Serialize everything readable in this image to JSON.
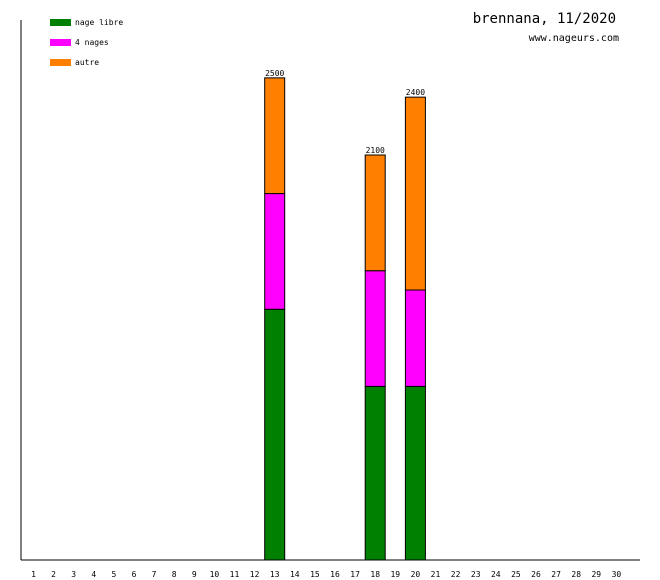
{
  "chart_data": {
    "type": "bar",
    "stacked": true,
    "title": "brennana, 11/2020",
    "subtitle": "www.nageurs.com",
    "xlabel": "",
    "ylabel": "",
    "categories": [
      "1",
      "2",
      "3",
      "4",
      "5",
      "6",
      "7",
      "8",
      "9",
      "10",
      "11",
      "12",
      "13",
      "14",
      "15",
      "16",
      "17",
      "18",
      "19",
      "20",
      "21",
      "22",
      "23",
      "24",
      "25",
      "26",
      "27",
      "28",
      "29",
      "30"
    ],
    "series": [
      {
        "name": "nage libre",
        "color": "#008000",
        "values": [
          0,
          0,
          0,
          0,
          0,
          0,
          0,
          0,
          0,
          0,
          0,
          0,
          1300,
          0,
          0,
          0,
          0,
          900,
          0,
          900,
          0,
          0,
          0,
          0,
          0,
          0,
          0,
          0,
          0,
          0
        ]
      },
      {
        "name": "4 nages",
        "color": "#ff00ff",
        "values": [
          0,
          0,
          0,
          0,
          0,
          0,
          0,
          0,
          0,
          0,
          0,
          0,
          600,
          0,
          0,
          0,
          0,
          600,
          0,
          500,
          0,
          0,
          0,
          0,
          0,
          0,
          0,
          0,
          0,
          0
        ]
      },
      {
        "name": "autre",
        "color": "#ff8000",
        "values": [
          0,
          0,
          0,
          0,
          0,
          0,
          0,
          0,
          0,
          0,
          0,
          0,
          600,
          0,
          0,
          0,
          0,
          600,
          0,
          1000,
          0,
          0,
          0,
          0,
          0,
          0,
          0,
          0,
          0,
          0
        ]
      }
    ],
    "totals": [
      {
        "x": "13",
        "label": "2500"
      },
      {
        "x": "18",
        "label": "2100"
      },
      {
        "x": "20",
        "label": "2400"
      }
    ],
    "ylim": [
      0,
      2800
    ],
    "grid": false,
    "legend": "top-left"
  }
}
